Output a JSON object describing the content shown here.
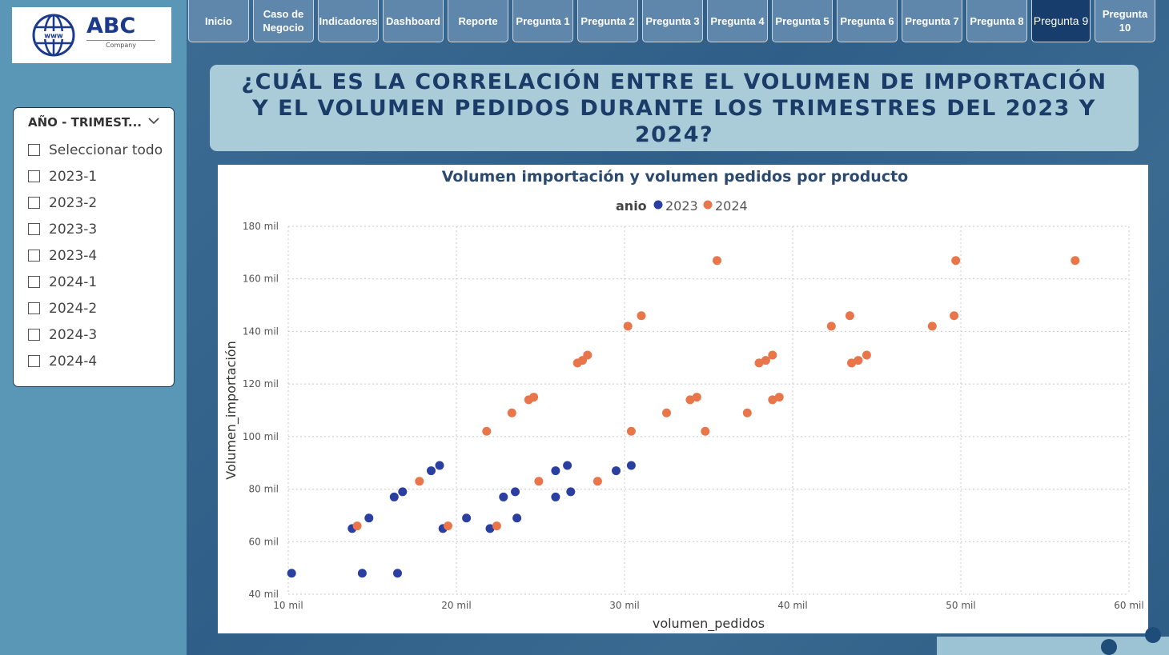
{
  "logo": {
    "name": "ABC",
    "sub": "Company",
    "globe_label": "www"
  },
  "slicer": {
    "header": "AÑO - TRIMEST...",
    "items": [
      {
        "label": "Seleccionar todo"
      },
      {
        "label": "2023-1"
      },
      {
        "label": "2023-2"
      },
      {
        "label": "2023-3"
      },
      {
        "label": "2023-4"
      },
      {
        "label": "2024-1"
      },
      {
        "label": "2024-2"
      },
      {
        "label": "2024-3"
      },
      {
        "label": "2024-4"
      }
    ]
  },
  "nav": {
    "items": [
      {
        "label": "Inicio"
      },
      {
        "label": "Caso de Negocio"
      },
      {
        "label": "Indicadores"
      },
      {
        "label": "Dashboard"
      },
      {
        "label": "Reporte"
      },
      {
        "label": "Pregunta 1"
      },
      {
        "label": "Pregunta 2"
      },
      {
        "label": "Pregunta 3"
      },
      {
        "label": "Pregunta 4"
      },
      {
        "label": "Pregunta 5"
      },
      {
        "label": "Pregunta 6"
      },
      {
        "label": "Pregunta 7"
      },
      {
        "label": "Pregunta 8"
      },
      {
        "label": "Pregunta 9"
      },
      {
        "label": "Pregunta 10"
      }
    ],
    "active": "Pregunta 9"
  },
  "banner": {
    "title": "¿CUÁL ES LA CORRELACIÓN ENTRE EL VOLUMEN DE IMPORTACIÓN Y EL VOLUMEN PEDIDOS DURANTE LOS TRIMESTRES DEL 2023 Y 2024?"
  },
  "colors": {
    "series_2023": "#2b3fa0",
    "series_2024": "#e8764a",
    "title": "#2c4a6e",
    "active_nav": "#163d6b"
  },
  "chart_data": {
    "type": "scatter",
    "title": "Volumen importación y volumen pedidos por producto",
    "legend_title": "anio",
    "legend_position": "top-center",
    "xlabel": "volumen_pedidos",
    "ylabel": "Volumen_importación",
    "xlim": [
      10000,
      60000
    ],
    "ylim": [
      40000,
      180000
    ],
    "x_ticks": [
      {
        "value": 10000,
        "label": "10 mil"
      },
      {
        "value": 20000,
        "label": "20 mil"
      },
      {
        "value": 30000,
        "label": "30 mil"
      },
      {
        "value": 40000,
        "label": "40 mil"
      },
      {
        "value": 50000,
        "label": "50 mil"
      },
      {
        "value": 60000,
        "label": "60 mil"
      }
    ],
    "y_ticks": [
      {
        "value": 40000,
        "label": "40 mil"
      },
      {
        "value": 60000,
        "label": "60 mil"
      },
      {
        "value": 80000,
        "label": "80 mil"
      },
      {
        "value": 100000,
        "label": "100 mil"
      },
      {
        "value": 120000,
        "label": "120 mil"
      },
      {
        "value": 140000,
        "label": "140 mil"
      },
      {
        "value": 160000,
        "label": "160 mil"
      },
      {
        "value": 180000,
        "label": "180 mil"
      }
    ],
    "grid": true,
    "series": [
      {
        "name": "2023",
        "color": "#2b3fa0",
        "points": [
          [
            10200,
            48000
          ],
          [
            14400,
            48000
          ],
          [
            16500,
            48000
          ],
          [
            13800,
            65000
          ],
          [
            19200,
            65000
          ],
          [
            22000,
            65000
          ],
          [
            14800,
            69000
          ],
          [
            20600,
            69000
          ],
          [
            23600,
            69000
          ],
          [
            16300,
            77000
          ],
          [
            22800,
            77000
          ],
          [
            25900,
            77000
          ],
          [
            16800,
            79000
          ],
          [
            23500,
            79000
          ],
          [
            26800,
            79000
          ],
          [
            18500,
            87000
          ],
          [
            25900,
            87000
          ],
          [
            29500,
            87000
          ],
          [
            19000,
            89000
          ],
          [
            26600,
            89000
          ],
          [
            30400,
            89000
          ]
        ]
      },
      {
        "name": "2024",
        "color": "#e8764a",
        "points": [
          [
            14100,
            66000
          ],
          [
            19500,
            66000
          ],
          [
            22400,
            66000
          ],
          [
            17800,
            83000
          ],
          [
            24900,
            83000
          ],
          [
            28400,
            83000
          ],
          [
            21800,
            102000
          ],
          [
            30400,
            102000
          ],
          [
            34800,
            102000
          ],
          [
            23300,
            109000
          ],
          [
            32500,
            109000
          ],
          [
            37300,
            109000
          ],
          [
            24300,
            114000
          ],
          [
            33900,
            114000
          ],
          [
            38800,
            114000
          ],
          [
            24600,
            115000
          ],
          [
            34300,
            115000
          ],
          [
            39200,
            115000
          ],
          [
            27200,
            128000
          ],
          [
            38000,
            128000
          ],
          [
            43500,
            128000
          ],
          [
            27500,
            129000
          ],
          [
            38400,
            129000
          ],
          [
            43900,
            129000
          ],
          [
            27800,
            131000
          ],
          [
            38800,
            131000
          ],
          [
            44400,
            131000
          ],
          [
            30200,
            142000
          ],
          [
            42300,
            142000
          ],
          [
            48300,
            142000
          ],
          [
            31000,
            146000
          ],
          [
            43400,
            146000
          ],
          [
            49600,
            146000
          ],
          [
            35500,
            167000
          ],
          [
            49700,
            167000
          ],
          [
            56800,
            167000
          ]
        ]
      }
    ]
  }
}
